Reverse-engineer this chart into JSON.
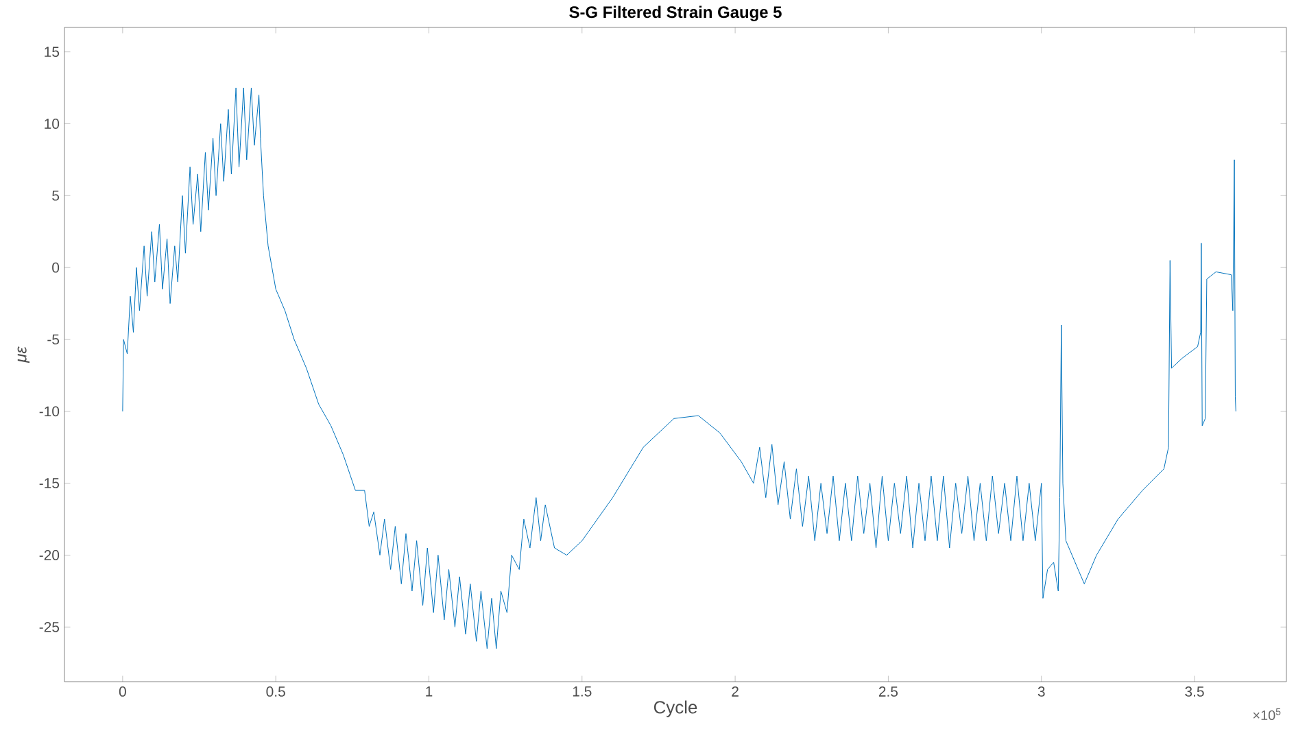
{
  "chart_data": {
    "type": "line",
    "title": "S-G Filtered Strain Gauge 5",
    "xlabel": "Cycle",
    "ylabel": "με",
    "annotations": [
      "×10$^{5}$"
    ],
    "xlim": [
      -0.19,
      3.8
    ],
    "ylim": [
      -28.8,
      16.7
    ],
    "xticks": [
      0,
      0.5,
      1,
      1.5,
      2,
      2.5,
      3,
      3.5
    ],
    "yticks": [
      -25,
      -20,
      -15,
      -10,
      -5,
      0,
      5,
      10,
      15
    ],
    "grid": false,
    "marker": "none",
    "line_style": "solid",
    "series": [
      {
        "color": "#0072bd",
        "x": [
          0,
          0.003,
          0.015,
          0.025,
          0.035,
          0.045,
          0.055,
          0.07,
          0.08,
          0.095,
          0.105,
          0.12,
          0.13,
          0.145,
          0.155,
          0.17,
          0.18,
          0.195,
          0.205,
          0.22,
          0.23,
          0.245,
          0.255,
          0.27,
          0.28,
          0.295,
          0.305,
          0.32,
          0.33,
          0.345,
          0.355,
          0.37,
          0.38,
          0.395,
          0.405,
          0.42,
          0.43,
          0.445,
          0.45,
          0.46,
          0.475,
          0.5,
          0.53,
          0.56,
          0.6,
          0.64,
          0.68,
          0.72,
          0.76,
          0.79,
          0.805,
          0.82,
          0.84,
          0.855,
          0.875,
          0.89,
          0.91,
          0.925,
          0.945,
          0.96,
          0.98,
          0.995,
          1.015,
          1.03,
          1.05,
          1.065,
          1.085,
          1.1,
          1.12,
          1.135,
          1.155,
          1.17,
          1.19,
          1.205,
          1.22,
          1.235,
          1.255,
          1.27,
          1.295,
          1.31,
          1.33,
          1.35,
          1.365,
          1.38,
          1.41,
          1.45,
          1.5,
          1.6,
          1.7,
          1.8,
          1.88,
          1.95,
          2.02,
          2.06,
          2.08,
          2.1,
          2.12,
          2.14,
          2.16,
          2.18,
          2.2,
          2.22,
          2.24,
          2.26,
          2.28,
          2.3,
          2.32,
          2.34,
          2.36,
          2.38,
          2.4,
          2.42,
          2.44,
          2.46,
          2.48,
          2.5,
          2.52,
          2.54,
          2.56,
          2.58,
          2.6,
          2.62,
          2.64,
          2.66,
          2.68,
          2.7,
          2.72,
          2.74,
          2.76,
          2.78,
          2.8,
          2.82,
          2.84,
          2.86,
          2.88,
          2.9,
          2.92,
          2.94,
          2.96,
          2.98,
          3,
          3.005,
          3.02,
          3.04,
          3.055,
          3.06,
          3.065,
          3.07,
          3.08,
          3.11,
          3.14,
          3.18,
          3.25,
          3.33,
          3.4,
          3.415,
          3.42,
          3.425,
          3.46,
          3.51,
          3.52,
          3.522,
          3.525,
          3.535,
          3.54,
          3.57,
          3.62,
          3.625,
          3.63,
          3.633,
          3.635
        ],
        "values": [
          -10,
          -5,
          -6,
          -2,
          -4.5,
          0,
          -3,
          1.5,
          -2,
          2.5,
          -1,
          3,
          -1.5,
          2,
          -2.5,
          1.5,
          -1,
          5,
          1,
          7,
          3,
          6.5,
          2.5,
          8,
          4,
          9,
          5,
          10,
          6,
          11,
          6.5,
          12.5,
          7,
          12.5,
          7.5,
          12.5,
          8.5,
          12,
          9,
          5,
          1.5,
          -1.5,
          -3,
          -5,
          -7,
          -9.5,
          -11,
          -13,
          -15.5,
          -15.5,
          -18,
          -17,
          -20,
          -17.5,
          -21,
          -18,
          -22,
          -18.5,
          -22.5,
          -19,
          -23.5,
          -19.5,
          -24,
          -20,
          -24.5,
          -21,
          -25,
          -21.5,
          -25.5,
          -22,
          -26,
          -22.5,
          -26.5,
          -23,
          -26.5,
          -22.5,
          -24,
          -20,
          -21,
          -17.5,
          -19.5,
          -16,
          -19,
          -16.5,
          -19.5,
          -20,
          -19,
          -16,
          -12.5,
          -10.5,
          -10.3,
          -11.5,
          -13.5,
          -15,
          -12.5,
          -16,
          -12.3,
          -16.5,
          -13.5,
          -17.5,
          -14,
          -18,
          -14.5,
          -19,
          -15,
          -18.5,
          -14.5,
          -19,
          -15,
          -19,
          -14.5,
          -18.5,
          -15,
          -19.5,
          -14.5,
          -19,
          -15,
          -18.5,
          -14.5,
          -19.5,
          -15,
          -19,
          -14.5,
          -19,
          -14.5,
          -19.5,
          -15,
          -18.5,
          -14.5,
          -19,
          -15,
          -19,
          -14.5,
          -18.5,
          -15,
          -19,
          -14.5,
          -19,
          -15,
          -19,
          -15,
          -23,
          -21,
          -20.5,
          -22.5,
          -16,
          -4,
          -15,
          -19,
          -20.5,
          -22,
          -20,
          -17.5,
          -15.5,
          -14,
          -12.5,
          0.5,
          -7,
          -6.3,
          -5.5,
          -4.5,
          1.7,
          -11,
          -10.5,
          -0.8,
          -0.3,
          -0.5,
          -3,
          7.5,
          -9,
          -10
        ]
      }
    ]
  }
}
